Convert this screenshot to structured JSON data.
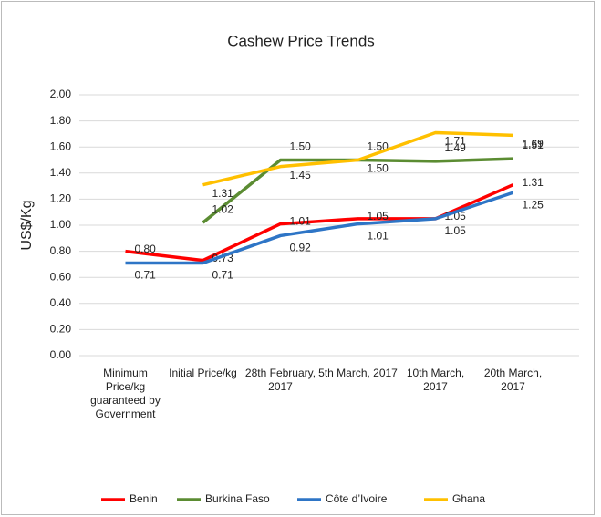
{
  "chart_data": {
    "type": "line",
    "title": "Cashew Price Trends",
    "y_label": "US$/Kg",
    "categories": [
      "Minimum Price/kg guaranteed by Government",
      "Initial Price/kg",
      "28th February, 2017",
      "5th March, 2017",
      "10th March, 2017",
      "20th March, 2017"
    ],
    "series": [
      {
        "name": "Benin",
        "color": "#ff0000",
        "values": [
          0.8,
          0.73,
          1.01,
          1.05,
          1.05,
          1.31
        ],
        "value_labels": [
          "0.80",
          "0.73",
          "1.01",
          "1.05",
          "1.05",
          "1.31"
        ]
      },
      {
        "name": "Burkina Faso",
        "color": "#5b8c32",
        "values": [
          null,
          1.02,
          1.5,
          1.5,
          1.49,
          1.51
        ],
        "value_labels": [
          null,
          "1.02",
          "1.50",
          "1.50",
          "1.49",
          "1.51"
        ]
      },
      {
        "name": "Côte d’Ivoire",
        "color": "#2e75c6",
        "values": [
          0.71,
          0.71,
          0.92,
          1.01,
          1.05,
          1.25
        ],
        "value_labels": [
          "0.71",
          "0.71",
          "0.92",
          "1.01",
          "1.05",
          "1.25"
        ]
      },
      {
        "name": "Ghana",
        "color": "#ffc000",
        "values": [
          null,
          1.31,
          1.45,
          1.5,
          1.71,
          1.69
        ],
        "value_labels": [
          null,
          "1.31",
          "1.45",
          "1.50",
          "1.71",
          "1.69"
        ]
      }
    ],
    "ylim": [
      0,
      2
    ],
    "yticks": [
      {
        "value": 0,
        "label": "0.00"
      },
      {
        "value": 0.2,
        "label": "0.20"
      },
      {
        "value": 0.4,
        "label": "0.40"
      },
      {
        "value": 0.6,
        "label": "0.60"
      },
      {
        "value": 0.8,
        "label": "0.80"
      },
      {
        "value": 1,
        "label": "1.00"
      },
      {
        "value": 1.2,
        "label": "1.20"
      },
      {
        "value": 1.4,
        "label": "1.40"
      },
      {
        "value": 1.6,
        "label": "1.60"
      },
      {
        "value": 1.8,
        "label": "1.80"
      },
      {
        "value": 2,
        "label": "2.00"
      }
    ],
    "legend": "bottom"
  }
}
